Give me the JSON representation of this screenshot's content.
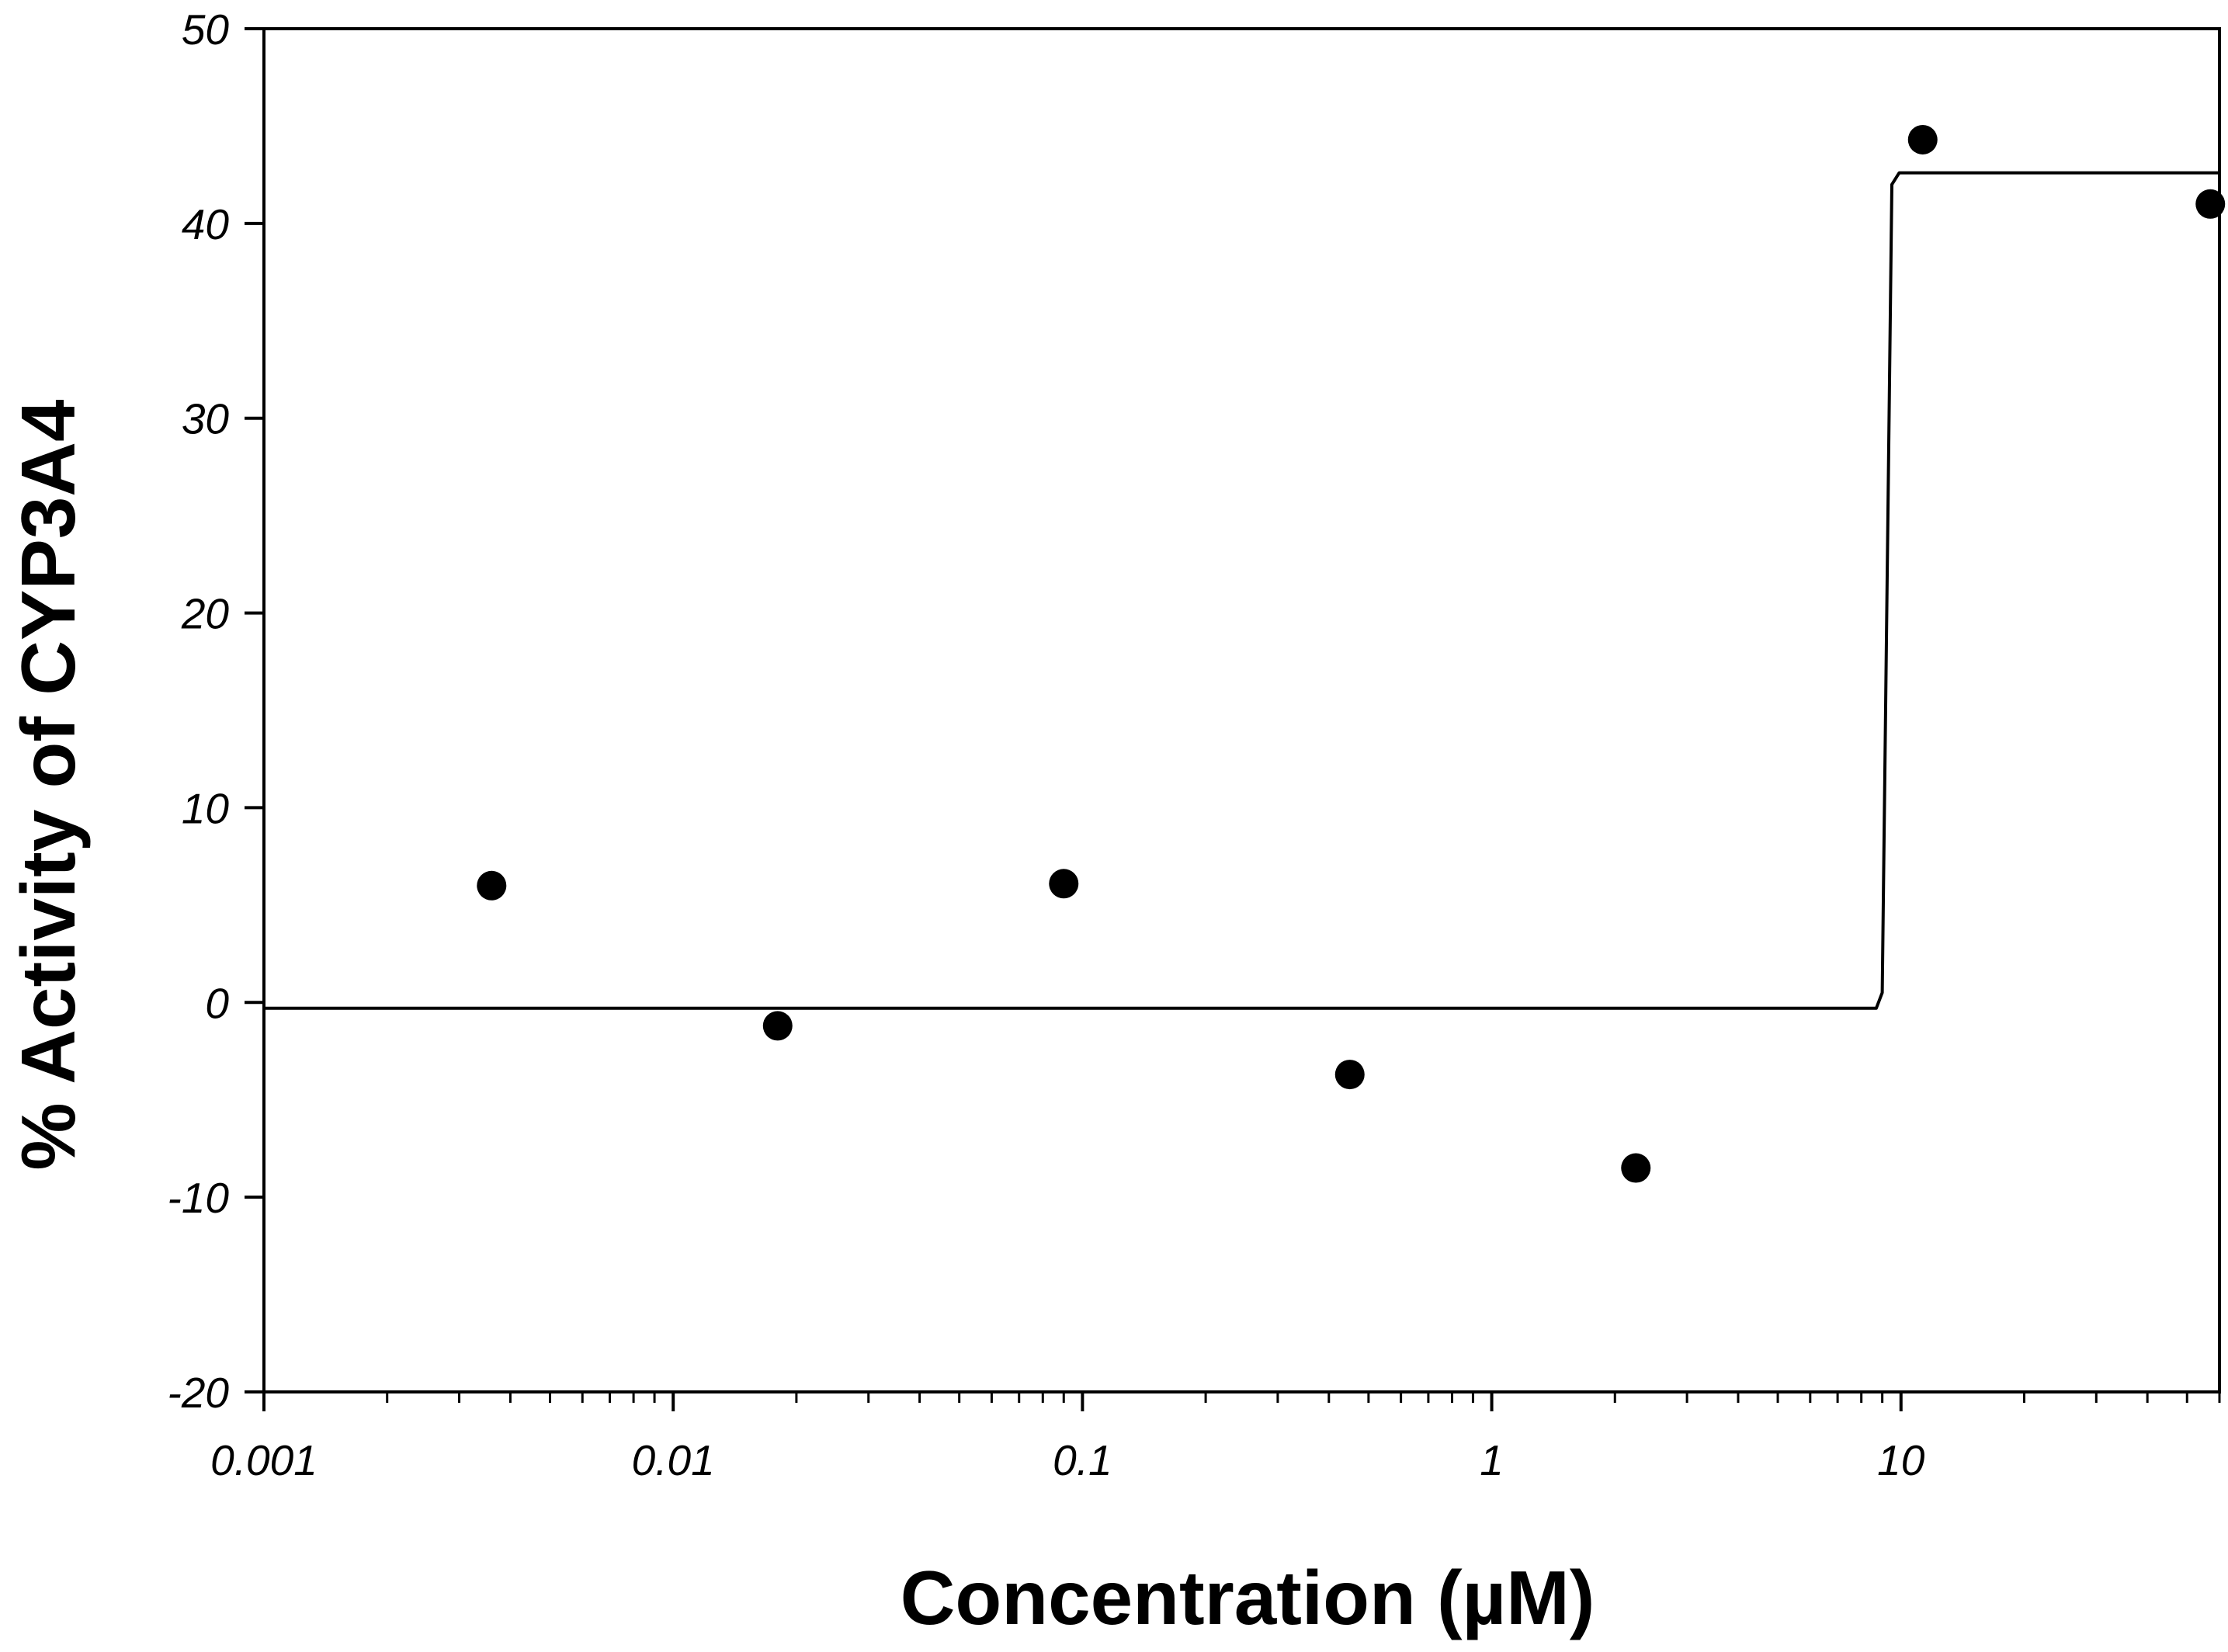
{
  "chart_data": {
    "type": "scatter",
    "title": "",
    "xlabel": "Concentration (µM)",
    "ylabel": "% Activity of CYP3A4",
    "x_scale": "log",
    "xlim": [
      0.001,
      60
    ],
    "ylim": [
      -20,
      50
    ],
    "x_ticks": [
      {
        "value": 0.001,
        "label": "0.001"
      },
      {
        "value": 0.01,
        "label": "0.01"
      },
      {
        "value": 0.1,
        "label": "0.1"
      },
      {
        "value": 1,
        "label": "1"
      },
      {
        "value": 10,
        "label": "10"
      }
    ],
    "y_ticks": [
      {
        "value": -20,
        "label": "-20"
      },
      {
        "value": -10,
        "label": "-10"
      },
      {
        "value": 0,
        "label": "0"
      },
      {
        "value": 10,
        "label": "10"
      },
      {
        "value": 20,
        "label": "20"
      },
      {
        "value": 30,
        "label": "30"
      },
      {
        "value": 40,
        "label": "40"
      },
      {
        "value": 50,
        "label": "50"
      }
    ],
    "grid": false,
    "legend": "none",
    "series": [
      {
        "type": "scatter",
        "marker": "filled-circle",
        "color": "#000000",
        "points": [
          {
            "x": 0.0036,
            "y": 6.0
          },
          {
            "x": 0.018,
            "y": -1.2
          },
          {
            "x": 0.09,
            "y": 6.1
          },
          {
            "x": 0.45,
            "y": -3.7
          },
          {
            "x": 2.25,
            "y": -8.5
          },
          {
            "x": 11.3,
            "y": 44.3
          },
          {
            "x": 57,
            "y": 41.0
          }
        ]
      },
      {
        "type": "line",
        "description": "fitted curve",
        "color": "#000000",
        "points": [
          {
            "x": 0.001,
            "y": -0.3
          },
          {
            "x": 8.7,
            "y": -0.3
          },
          {
            "x": 9.0,
            "y": 0.5
          },
          {
            "x": 9.5,
            "y": 42.0
          },
          {
            "x": 9.9,
            "y": 42.6
          },
          {
            "x": 60,
            "y": 42.6
          }
        ]
      }
    ]
  }
}
